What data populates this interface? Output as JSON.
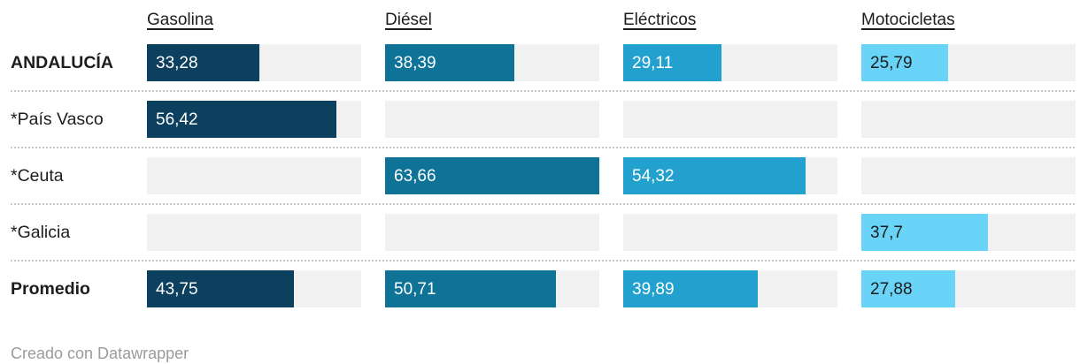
{
  "chart_data": {
    "type": "bar",
    "orientation": "horizontal",
    "legend": "none",
    "grid": false,
    "scale_max": 63.66,
    "track_color": "#f1f1f1",
    "columns": [
      {
        "label": "Gasolina",
        "color": "#0d3f5e",
        "text_color": "#ffffff"
      },
      {
        "label": "Diésel",
        "color": "#0e7396",
        "text_color": "#ffffff"
      },
      {
        "label": "Eléctricos",
        "color": "#22a1ce",
        "text_color": "#ffffff"
      },
      {
        "label": "Motocicletas",
        "color": "#69d4f8",
        "text_color": "#1d1d1d"
      }
    ],
    "rows": [
      {
        "label": "ANDALUCÍA",
        "bold": true,
        "values": [
          33.28,
          38.39,
          29.11,
          25.79
        ],
        "display": [
          "33,28",
          "38,39",
          "29,11",
          "25,79"
        ]
      },
      {
        "label": "*País Vasco",
        "bold": false,
        "values": [
          56.42,
          null,
          null,
          null
        ],
        "display": [
          "56,42",
          null,
          null,
          null
        ]
      },
      {
        "label": "*Ceuta",
        "bold": false,
        "values": [
          null,
          63.66,
          54.32,
          null
        ],
        "display": [
          null,
          "63,66",
          "54,32",
          null
        ]
      },
      {
        "label": "*Galicia",
        "bold": false,
        "values": [
          null,
          null,
          null,
          37.7
        ],
        "display": [
          null,
          null,
          null,
          "37,7"
        ]
      },
      {
        "label": "Promedio",
        "bold": true,
        "values": [
          43.75,
          50.71,
          39.89,
          27.88
        ],
        "display": [
          "43,75",
          "50,71",
          "39,89",
          "27,88"
        ]
      }
    ]
  },
  "footer": {
    "credit": "Creado con Datawrapper"
  }
}
